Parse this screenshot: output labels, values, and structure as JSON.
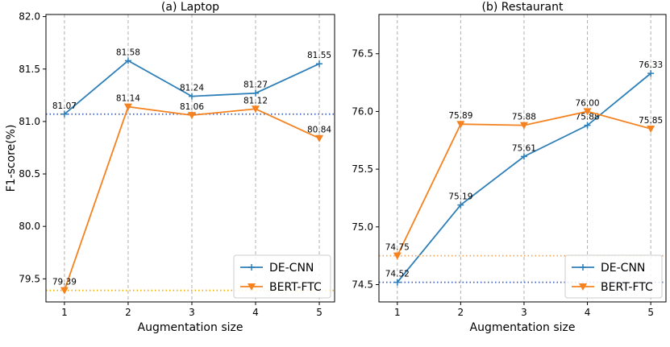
{
  "chart_data": [
    {
      "type": "line",
      "title": "(a) Laptop",
      "y_label": "F1-score(%)",
      "x_label": "Augmentation size",
      "x": [
        1,
        2,
        3,
        4,
        5
      ],
      "xlim": [
        0.71,
        5.24
      ],
      "xticks": [
        1,
        2,
        3,
        4,
        5
      ],
      "ylim": [
        79.28,
        82.02
      ],
      "yticks": [
        {
          "value": 79.5,
          "label": "79.5"
        },
        {
          "value": 80,
          "label": "80.0"
        },
        {
          "value": 80.5,
          "label": "80.5"
        },
        {
          "value": 81,
          "label": "81.0"
        },
        {
          "value": 81.5,
          "label": "81.5"
        },
        {
          "value": 82,
          "label": "82.0"
        }
      ],
      "grid": "x",
      "legend": "lower right",
      "series": [
        {
          "name": "DE-CNN",
          "color": "#2e7fb8",
          "marker": "plus",
          "baseline_color": "#3b5fc4",
          "values": [
            81.07,
            81.58,
            81.24,
            81.27,
            81.55
          ],
          "value_labels": [
            "81.07",
            "81.58",
            "81.24",
            "81.27",
            "81.55"
          ]
        },
        {
          "name": "BERT-FTC",
          "color": "#f5821f",
          "marker": "triangle",
          "baseline_color": "#f5b400",
          "values": [
            79.39,
            81.14,
            81.06,
            81.12,
            80.84
          ],
          "value_labels": [
            "79.39",
            "81.14",
            "81.06",
            "81.12",
            "80.84"
          ]
        }
      ]
    },
    {
      "type": "line",
      "title": "(b) Restaurant",
      "x_label": "Augmentation size",
      "x": [
        1,
        2,
        3,
        4,
        5
      ],
      "xlim": [
        0.71,
        5.24
      ],
      "xticks": [
        1,
        2,
        3,
        4,
        5
      ],
      "ylim": [
        74.35,
        76.84
      ],
      "yticks": [
        {
          "value": 74.5,
          "label": "74.5"
        },
        {
          "value": 75,
          "label": "75.0"
        },
        {
          "value": 75.5,
          "label": "75.5"
        },
        {
          "value": 76,
          "label": "76.0"
        },
        {
          "value": 76.5,
          "label": "76.5"
        }
      ],
      "grid": "x",
      "legend": "lower right",
      "series": [
        {
          "name": "DE-CNN",
          "color": "#2e7fb8",
          "marker": "plus",
          "baseline_color": "#3b5fc4",
          "values": [
            74.52,
            75.19,
            75.61,
            75.88,
            76.33
          ],
          "value_labels": [
            "74.52",
            "75.19",
            "75.61",
            "75.88",
            "76.33"
          ]
        },
        {
          "name": "BERT-FTC",
          "color": "#f5821f",
          "marker": "triangle",
          "baseline_color": "#f5a55a",
          "values": [
            74.75,
            75.89,
            75.88,
            76.0,
            75.85
          ],
          "value_labels": [
            "74.75",
            "75.89",
            "75.88",
            "76.00",
            "75.85"
          ]
        }
      ]
    }
  ]
}
